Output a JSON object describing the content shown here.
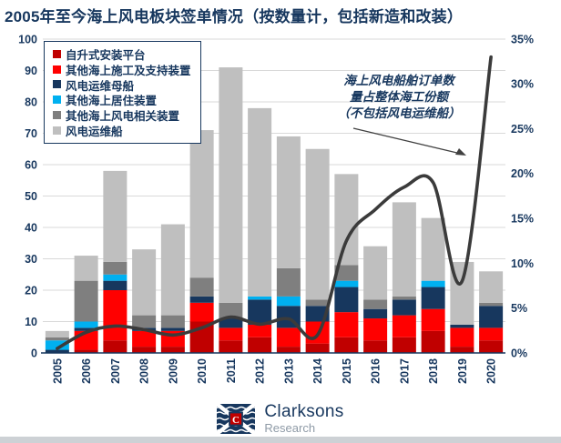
{
  "title": "2005年至今海上风电板块签单情况（按数量计，包括新造和改装）",
  "annotation": {
    "lines": [
      "海上风电船舶订单数",
      "量占整体海工份额",
      "（不包括风电运维船）"
    ]
  },
  "footer": {
    "brand": "Clarksons",
    "sub": "Research"
  },
  "colors": {
    "axis_text": "#17375E",
    "grid": "#D9D9D9",
    "axis_line": "#17375E",
    "trend_line": "#3B3B3B",
    "arrow": "#404040",
    "logo_navy": "#17375E",
    "logo_red": "#C00000"
  },
  "chart_data": {
    "type": "bar+line",
    "subtype": "stacked-column with secondary-axis line",
    "categories": [
      "2005",
      "2006",
      "2007",
      "2008",
      "2009",
      "2010",
      "2011",
      "2012",
      "2013",
      "2014",
      "2015",
      "2016",
      "2017",
      "2018",
      "2019",
      "2020"
    ],
    "series": [
      {
        "name": "自升式安装平台",
        "color": "#C00000",
        "values": [
          0,
          1,
          4,
          2,
          2,
          10,
          4,
          5,
          2,
          3,
          5,
          4,
          5,
          7,
          2,
          4
        ]
      },
      {
        "name": "其他海上施工及支持装置",
        "color": "#FF0000",
        "values": [
          0,
          6,
          16,
          5,
          5,
          6,
          4,
          4,
          6,
          7,
          8,
          7,
          7,
          7,
          6,
          4
        ]
      },
      {
        "name": "风电运维母船",
        "color": "#17375E",
        "values": [
          1,
          1,
          3,
          1,
          1,
          2,
          3,
          8,
          7,
          5,
          8,
          3,
          5,
          7,
          1,
          7
        ]
      },
      {
        "name": "其他海上居住装置",
        "color": "#00B0F0",
        "values": [
          3,
          2,
          2,
          0,
          0,
          0,
          0,
          1,
          3,
          0,
          2,
          0,
          0,
          2,
          0,
          0
        ]
      },
      {
        "name": "其他海上风电相关装置",
        "color": "#7F7F7F",
        "values": [
          1,
          13,
          4,
          4,
          4,
          6,
          5,
          0,
          9,
          2,
          5,
          3,
          1,
          0,
          0,
          1
        ]
      },
      {
        "name": "风电运维船",
        "color": "#BFBFBF",
        "values": [
          2,
          8,
          29,
          21,
          29,
          47,
          75,
          60,
          42,
          48,
          29,
          17,
          30,
          20,
          20,
          10
        ]
      }
    ],
    "bar_totals": [
      7,
      31,
      58,
      33,
      41,
      71,
      91,
      78,
      69,
      65,
      57,
      34,
      48,
      43,
      29,
      26
    ],
    "line_series": {
      "name": "海上风电船舶订单数量占整体海工份额（不包括风电运维船）",
      "unit": "%",
      "values": [
        0.5,
        2.3,
        3.0,
        2.6,
        2.0,
        2.8,
        4.0,
        3.2,
        3.8,
        2.0,
        12.5,
        16.0,
        18.5,
        19.0,
        8.0,
        33.0
      ]
    },
    "left_axis": {
      "min": 0,
      "max": 100,
      "step": 10,
      "tick_labels": [
        "0",
        "10",
        "20",
        "30",
        "40",
        "50",
        "60",
        "70",
        "80",
        "90",
        "100"
      ]
    },
    "right_axis": {
      "min": 0,
      "max": 35,
      "step": 5,
      "tick_labels": [
        "0%",
        "5%",
        "10%",
        "15%",
        "20%",
        "25%",
        "30%",
        "35%"
      ]
    },
    "grid": true,
    "legend_position": "top-left-inside"
  }
}
